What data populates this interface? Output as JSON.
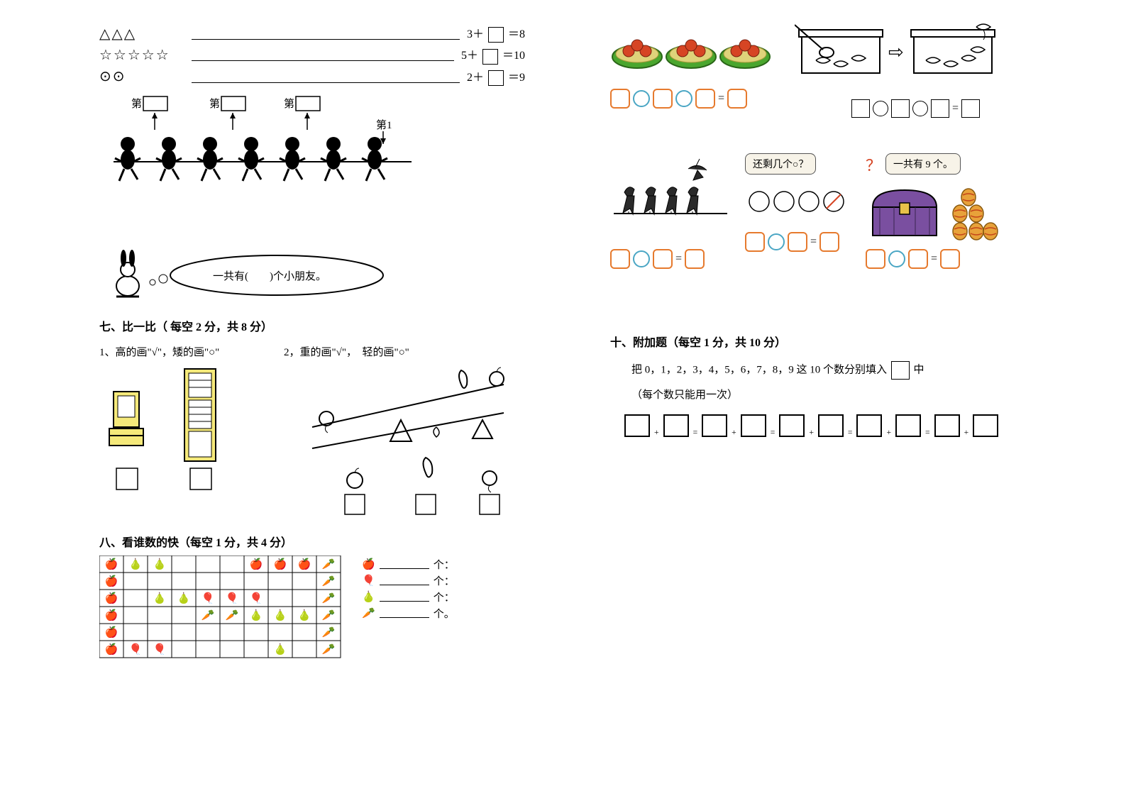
{
  "equations": {
    "line1": {
      "shapes": "△△△",
      "expr_left": "3＋",
      "expr_right": "＝8"
    },
    "line2": {
      "shapes": "☆☆☆☆☆",
      "expr_left": "5＋",
      "expr_right": "＝10"
    },
    "line3": {
      "shapes": "⊙⊙",
      "expr_left": "2＋",
      "expr_right": "＝9"
    }
  },
  "tug": {
    "position_label": "第",
    "right_label": "第1",
    "speech": "一共有(　　)个小朋友。",
    "children_count": 7
  },
  "section7": {
    "title": "七、比一比（ 每空 2 分，共 8 分）",
    "q1": "1、高的画\"√\"，矮的画\"○\"",
    "q2": "2，重的画\"√\"，　轻的画\"○\""
  },
  "section8": {
    "title": "八、看谁数的快（每空 1 分，共 4 分）",
    "count_suffix": "个：",
    "count_suffix_end": "个。"
  },
  "apples": {
    "plate_count": 3,
    "apples_per_plate": 3,
    "apple_color": "#d64524",
    "plate_color": "#4aa62e"
  },
  "fishtank": {
    "arrow": "⇨"
  },
  "swallows": {
    "total_on_wire": 4,
    "flying": 1
  },
  "circles_q": {
    "label": "还剩几个○？",
    "circles_total": 4
  },
  "chest_q": {
    "label": "一共有 9 个。",
    "eggs_shown": 6,
    "chest_color": "#7a4fa0",
    "egg_color": "#e8a23a"
  },
  "section10": {
    "title": "十、附加题（每空 1 分，共 10 分）",
    "instruction_pre": "把 0，1，2，3，4，5，6，7，8，9 这 10 个数分别填入",
    "instruction_post": "中",
    "note": "（每个数只能用一次）"
  },
  "colors": {
    "orange": "#e67a2e",
    "teal": "#4aa6c4",
    "apple_red": "#d64524",
    "plate_green": "#4aa62e",
    "chest_purple": "#7a4fa0",
    "egg": "#e8a23a"
  }
}
